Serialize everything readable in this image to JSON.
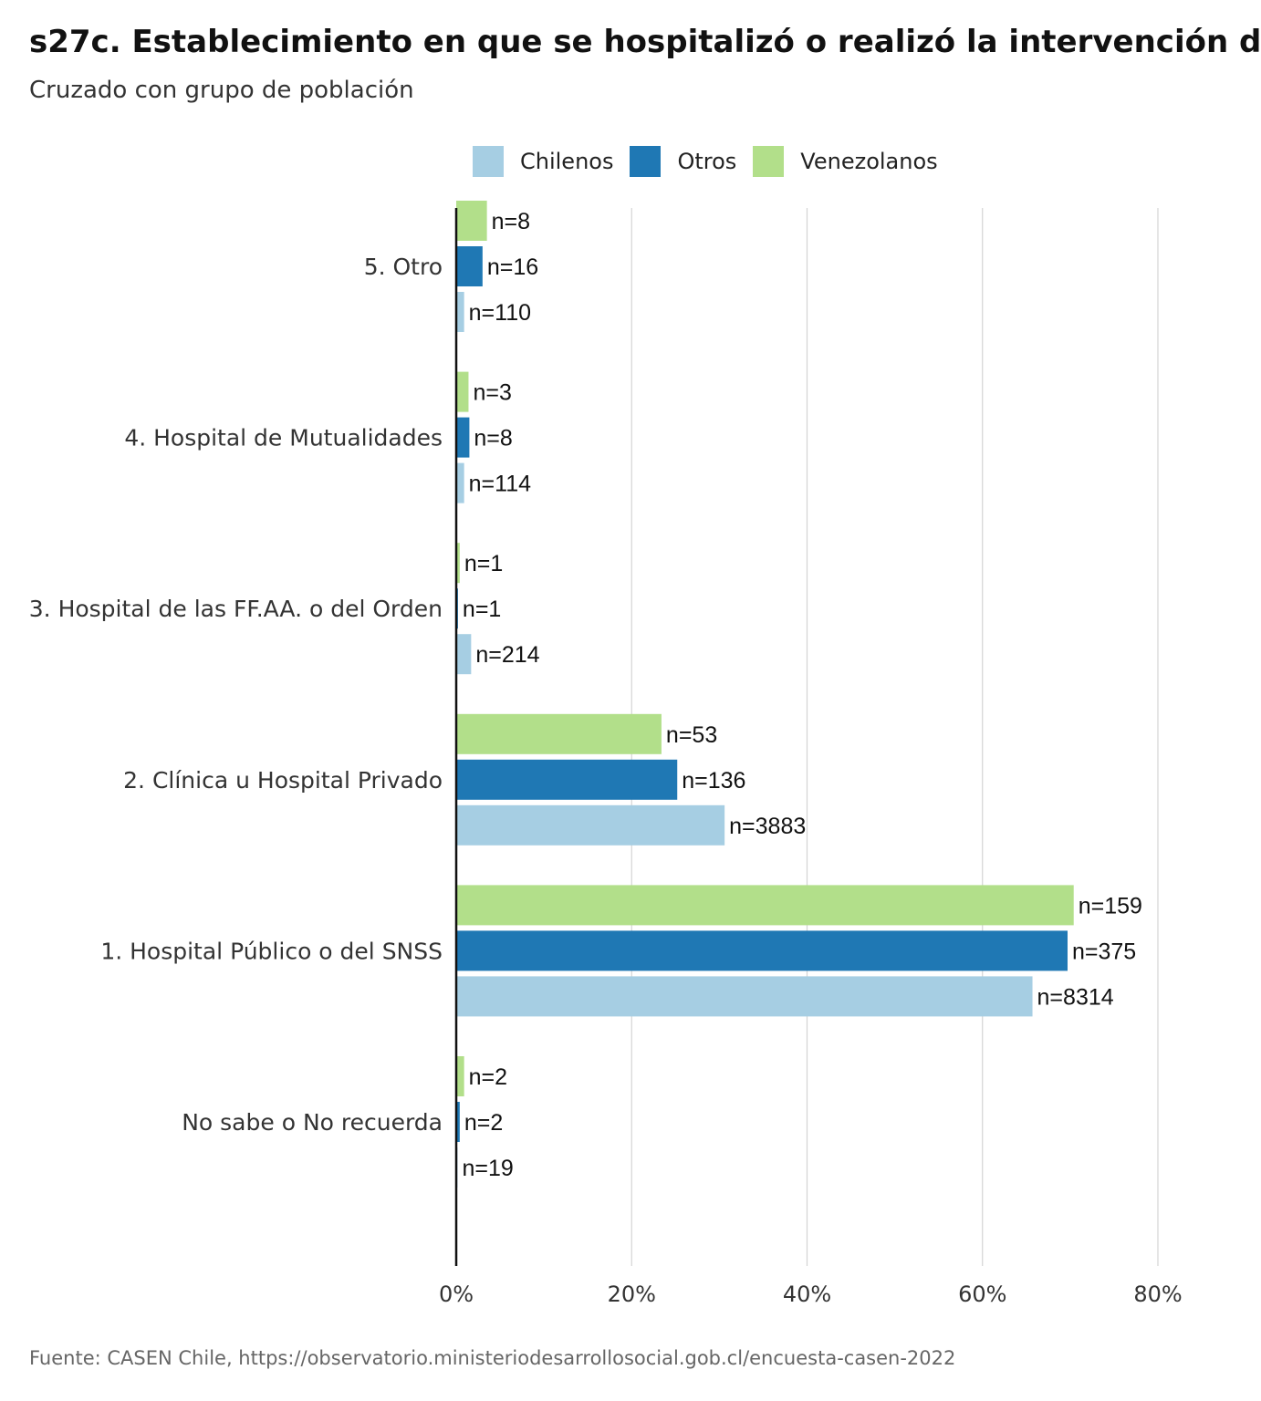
{
  "title": "s27c. Establecimiento en que se hospitalizó o realizó la intervención d",
  "subtitle": "Cruzado con grupo de población",
  "source": "Fuente: CASEN Chile, https://observatorio.ministeriodesarrollosocial.gob.cl/encuesta-casen-2022",
  "chart_data": {
    "type": "bar",
    "orientation": "horizontal",
    "categories": [
      "5. Otro",
      "4. Hospital de Mutualidades",
      "3. Hospital de las FF.AA. o del Orden",
      "2. Clínica u Hospital Privado",
      "1. Hospital Público o del SNSS",
      "No sabe o No recuerda"
    ],
    "series": [
      {
        "name": "Venezolanos",
        "color": "#b2df8a",
        "values": [
          3.5,
          1.4,
          0.4,
          23.4,
          70.4,
          0.9
        ],
        "labels": [
          "n=8",
          "n=3",
          "n=1",
          "n=53",
          "n=159",
          "n=2"
        ]
      },
      {
        "name": "Otros",
        "color": "#1f78b4",
        "values": [
          3.0,
          1.5,
          0.2,
          25.2,
          69.7,
          0.4
        ],
        "labels": [
          "n=16",
          "n=8",
          "n=1",
          "n=136",
          "n=375",
          "n=2"
        ]
      },
      {
        "name": "Chilenos",
        "color": "#a6cee3",
        "values": [
          0.9,
          0.9,
          1.7,
          30.6,
          65.7,
          0.15
        ],
        "labels": [
          "n=110",
          "n=114",
          "n=214",
          "n=3883",
          "n=8314",
          "n=19"
        ]
      }
    ],
    "legend": [
      {
        "name": "Chilenos",
        "color": "#a6cee3"
      },
      {
        "name": "Otros",
        "color": "#1f78b4"
      },
      {
        "name": "Venezolanos",
        "color": "#b2df8a"
      }
    ],
    "legend_position": "top",
    "xlim": [
      0,
      80
    ],
    "xticks": [
      0,
      20,
      40,
      60,
      80
    ],
    "xtick_labels": [
      "0%",
      "20%",
      "40%",
      "60%",
      "80%"
    ],
    "grid": true
  }
}
